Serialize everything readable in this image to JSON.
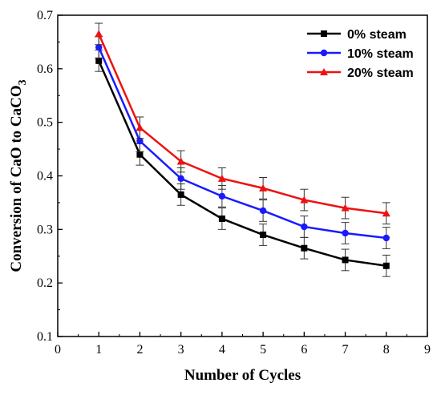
{
  "chart_data": {
    "type": "line",
    "xlabel": "Number of Cycles",
    "ylabel": "Conversion of CaO to CaCO",
    "ylabel_subscript": "3",
    "xlim": [
      0,
      9
    ],
    "ylim": [
      0.1,
      0.7
    ],
    "x_ticks": [
      "0",
      "1",
      "2",
      "3",
      "4",
      "5",
      "6",
      "7",
      "8",
      "9"
    ],
    "y_ticks": [
      "0.1",
      "0.2",
      "0.3",
      "0.4",
      "0.5",
      "0.6",
      "0.7"
    ],
    "x": [
      1,
      2,
      3,
      4,
      5,
      6,
      7,
      8
    ],
    "grid": false,
    "legend_position": "top-right",
    "series": [
      {
        "name": "0% steam",
        "color": "#000000",
        "marker": "square",
        "values": [
          0.615,
          0.44,
          0.365,
          0.32,
          0.29,
          0.265,
          0.243,
          0.232
        ],
        "errors": [
          0.02,
          0.02,
          0.02,
          0.02,
          0.02,
          0.02,
          0.02,
          0.02
        ]
      },
      {
        "name": "10% steam",
        "color": "#1a1aff",
        "marker": "circle",
        "values": [
          0.64,
          0.465,
          0.395,
          0.362,
          0.335,
          0.305,
          0.293,
          0.284
        ],
        "errors": [
          0.02,
          0.02,
          0.02,
          0.02,
          0.02,
          0.02,
          0.02,
          0.02
        ]
      },
      {
        "name": "20% steam",
        "color": "#ee1111",
        "marker": "triangle",
        "values": [
          0.665,
          0.49,
          0.427,
          0.395,
          0.377,
          0.355,
          0.34,
          0.33
        ],
        "errors": [
          0.02,
          0.02,
          0.02,
          0.02,
          0.02,
          0.02,
          0.02,
          0.02
        ]
      }
    ]
  }
}
